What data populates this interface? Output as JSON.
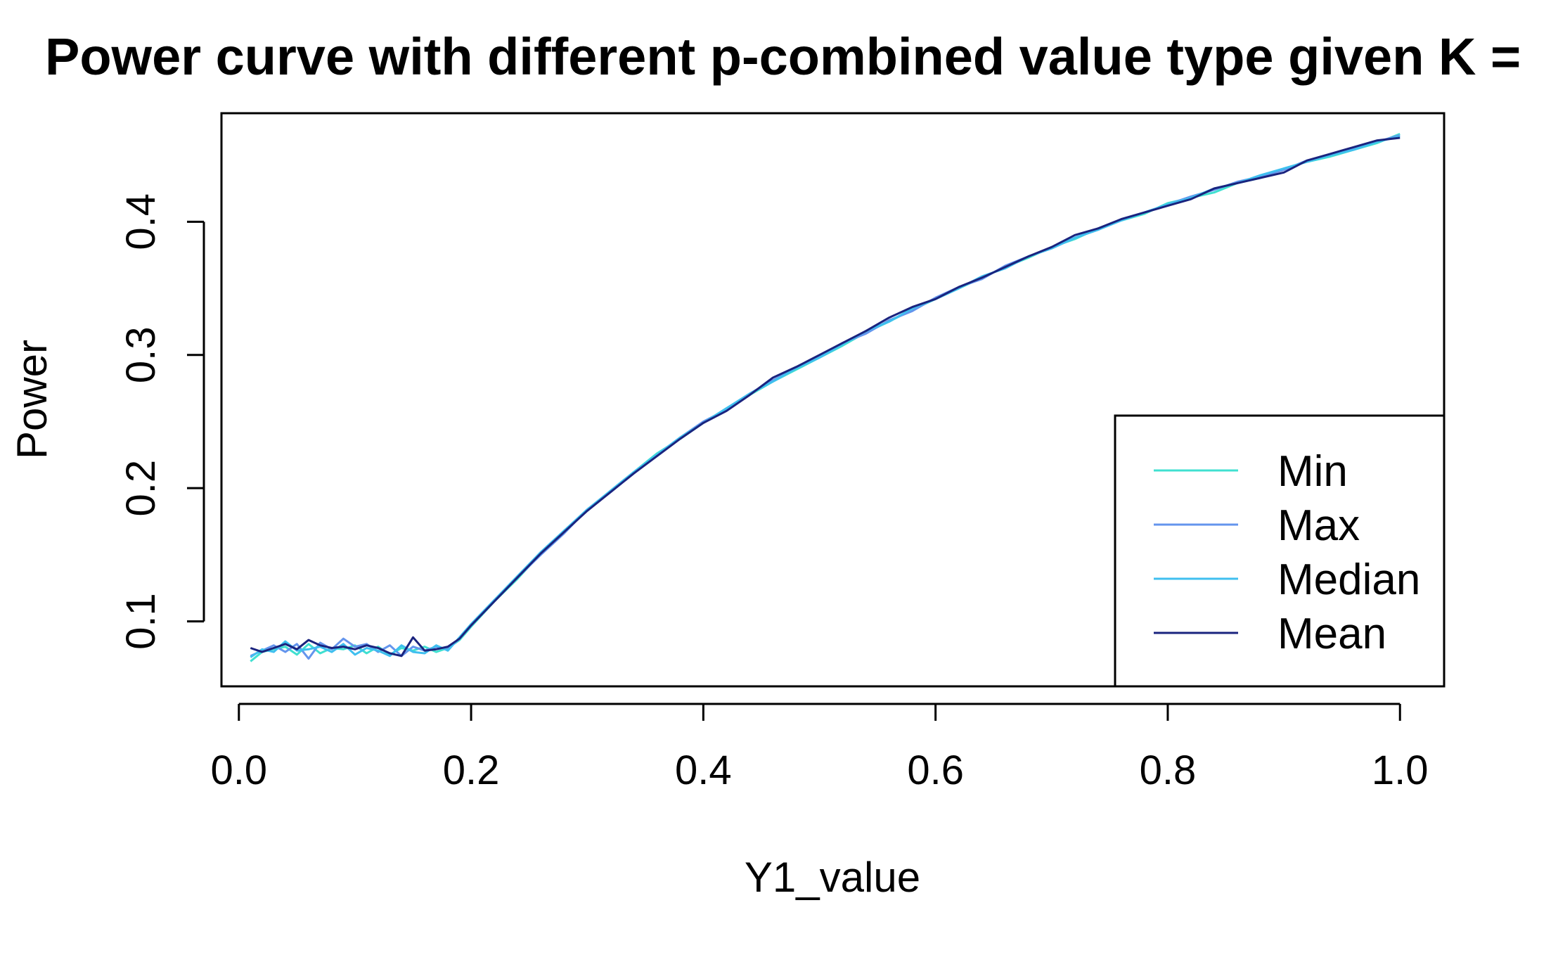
{
  "chart_data": {
    "type": "line",
    "title": "Power curve with different p-combined value type given K =",
    "xlabel": "Y1_value",
    "ylabel": "Power",
    "xlim": [
      -0.015,
      1.038
    ],
    "ylim": [
      0.0512,
      0.4815
    ],
    "xticks": [
      0.0,
      0.2,
      0.4,
      0.6,
      0.8,
      1.0
    ],
    "xtick_labels": [
      "0.0",
      "0.2",
      "0.4",
      "0.6",
      "0.8",
      "1.0"
    ],
    "yticks": [
      0.1,
      0.2,
      0.3,
      0.4
    ],
    "ytick_labels": [
      "0.1",
      "0.2",
      "0.3",
      "0.4"
    ],
    "grid": false,
    "legend_position": "bottom-right",
    "x": [
      0.01,
      0.02,
      0.03,
      0.04,
      0.05,
      0.06,
      0.07,
      0.08,
      0.09,
      0.1,
      0.11,
      0.12,
      0.13,
      0.14,
      0.15,
      0.16,
      0.17,
      0.18,
      0.19,
      0.2,
      0.22,
      0.24,
      0.26,
      0.28,
      0.3,
      0.32,
      0.34,
      0.36,
      0.38,
      0.4,
      0.42,
      0.44,
      0.46,
      0.48,
      0.5,
      0.52,
      0.54,
      0.56,
      0.58,
      0.6,
      0.62,
      0.64,
      0.66,
      0.68,
      0.7,
      0.72,
      0.74,
      0.76,
      0.78,
      0.8,
      0.82,
      0.84,
      0.86,
      0.88,
      0.9,
      0.92,
      0.94,
      0.96,
      0.98,
      1.0
    ],
    "series": [
      {
        "name": "Min",
        "color": "#40e0d0",
        "values": [
          0.07,
          0.077,
          0.079,
          0.081,
          0.075,
          0.083,
          0.076,
          0.08,
          0.079,
          0.082,
          0.076,
          0.081,
          0.075,
          0.08,
          0.078,
          0.081,
          0.077,
          0.08,
          0.086,
          0.096,
          0.115,
          0.132,
          0.151,
          0.168,
          0.183,
          0.198,
          0.212,
          0.226,
          0.237,
          0.249,
          0.26,
          0.27,
          0.28,
          0.289,
          0.298,
          0.307,
          0.317,
          0.325,
          0.334,
          0.342,
          0.35,
          0.358,
          0.366,
          0.373,
          0.381,
          0.387,
          0.395,
          0.401,
          0.406,
          0.414,
          0.418,
          0.422,
          0.429,
          0.433,
          0.44,
          0.445,
          0.449,
          0.454,
          0.459,
          0.466
        ]
      },
      {
        "name": "Max",
        "color": "#6495ed",
        "values": [
          0.074,
          0.078,
          0.082,
          0.077,
          0.083,
          0.072,
          0.084,
          0.079,
          0.087,
          0.081,
          0.083,
          0.077,
          0.082,
          0.074,
          0.081,
          0.078,
          0.081,
          0.079,
          0.087,
          0.097,
          0.116,
          0.133,
          0.15,
          0.166,
          0.184,
          0.197,
          0.211,
          0.225,
          0.238,
          0.25,
          0.259,
          0.271,
          0.281,
          0.29,
          0.299,
          0.309,
          0.316,
          0.326,
          0.333,
          0.343,
          0.351,
          0.357,
          0.367,
          0.374,
          0.38,
          0.388,
          0.394,
          0.402,
          0.407,
          0.413,
          0.419,
          0.424,
          0.43,
          0.434,
          0.439,
          0.446,
          0.45,
          0.455,
          0.46,
          0.465
        ]
      },
      {
        "name": "Median",
        "color": "#3fbfef",
        "values": [
          0.073,
          0.079,
          0.077,
          0.085,
          0.078,
          0.079,
          0.081,
          0.077,
          0.083,
          0.075,
          0.08,
          0.078,
          0.074,
          0.082,
          0.077,
          0.076,
          0.082,
          0.078,
          0.088,
          0.098,
          0.116,
          0.134,
          0.152,
          0.168,
          0.184,
          0.198,
          0.212,
          0.225,
          0.238,
          0.249,
          0.26,
          0.271,
          0.28,
          0.29,
          0.298,
          0.308,
          0.318,
          0.325,
          0.335,
          0.342,
          0.35,
          0.359,
          0.365,
          0.374,
          0.38,
          0.388,
          0.394,
          0.401,
          0.407,
          0.413,
          0.418,
          0.425,
          0.429,
          0.435,
          0.44,
          0.445,
          0.45,
          0.454,
          0.46,
          0.464
        ]
      },
      {
        "name": "Mean",
        "color": "#1a237e",
        "values": [
          0.08,
          0.077,
          0.08,
          0.083,
          0.079,
          0.086,
          0.082,
          0.08,
          0.081,
          0.079,
          0.082,
          0.08,
          0.076,
          0.074,
          0.088,
          0.078,
          0.079,
          0.081,
          0.087,
          0.097,
          0.115,
          0.133,
          0.151,
          0.167,
          0.183,
          0.197,
          0.211,
          0.224,
          0.237,
          0.249,
          0.258,
          0.27,
          0.283,
          0.291,
          0.3,
          0.309,
          0.318,
          0.328,
          0.336,
          0.342,
          0.351,
          0.358,
          0.366,
          0.374,
          0.381,
          0.39,
          0.395,
          0.402,
          0.407,
          0.412,
          0.417,
          0.425,
          0.429,
          0.433,
          0.437,
          0.446,
          0.451,
          0.456,
          0.461,
          0.463
        ]
      }
    ]
  }
}
